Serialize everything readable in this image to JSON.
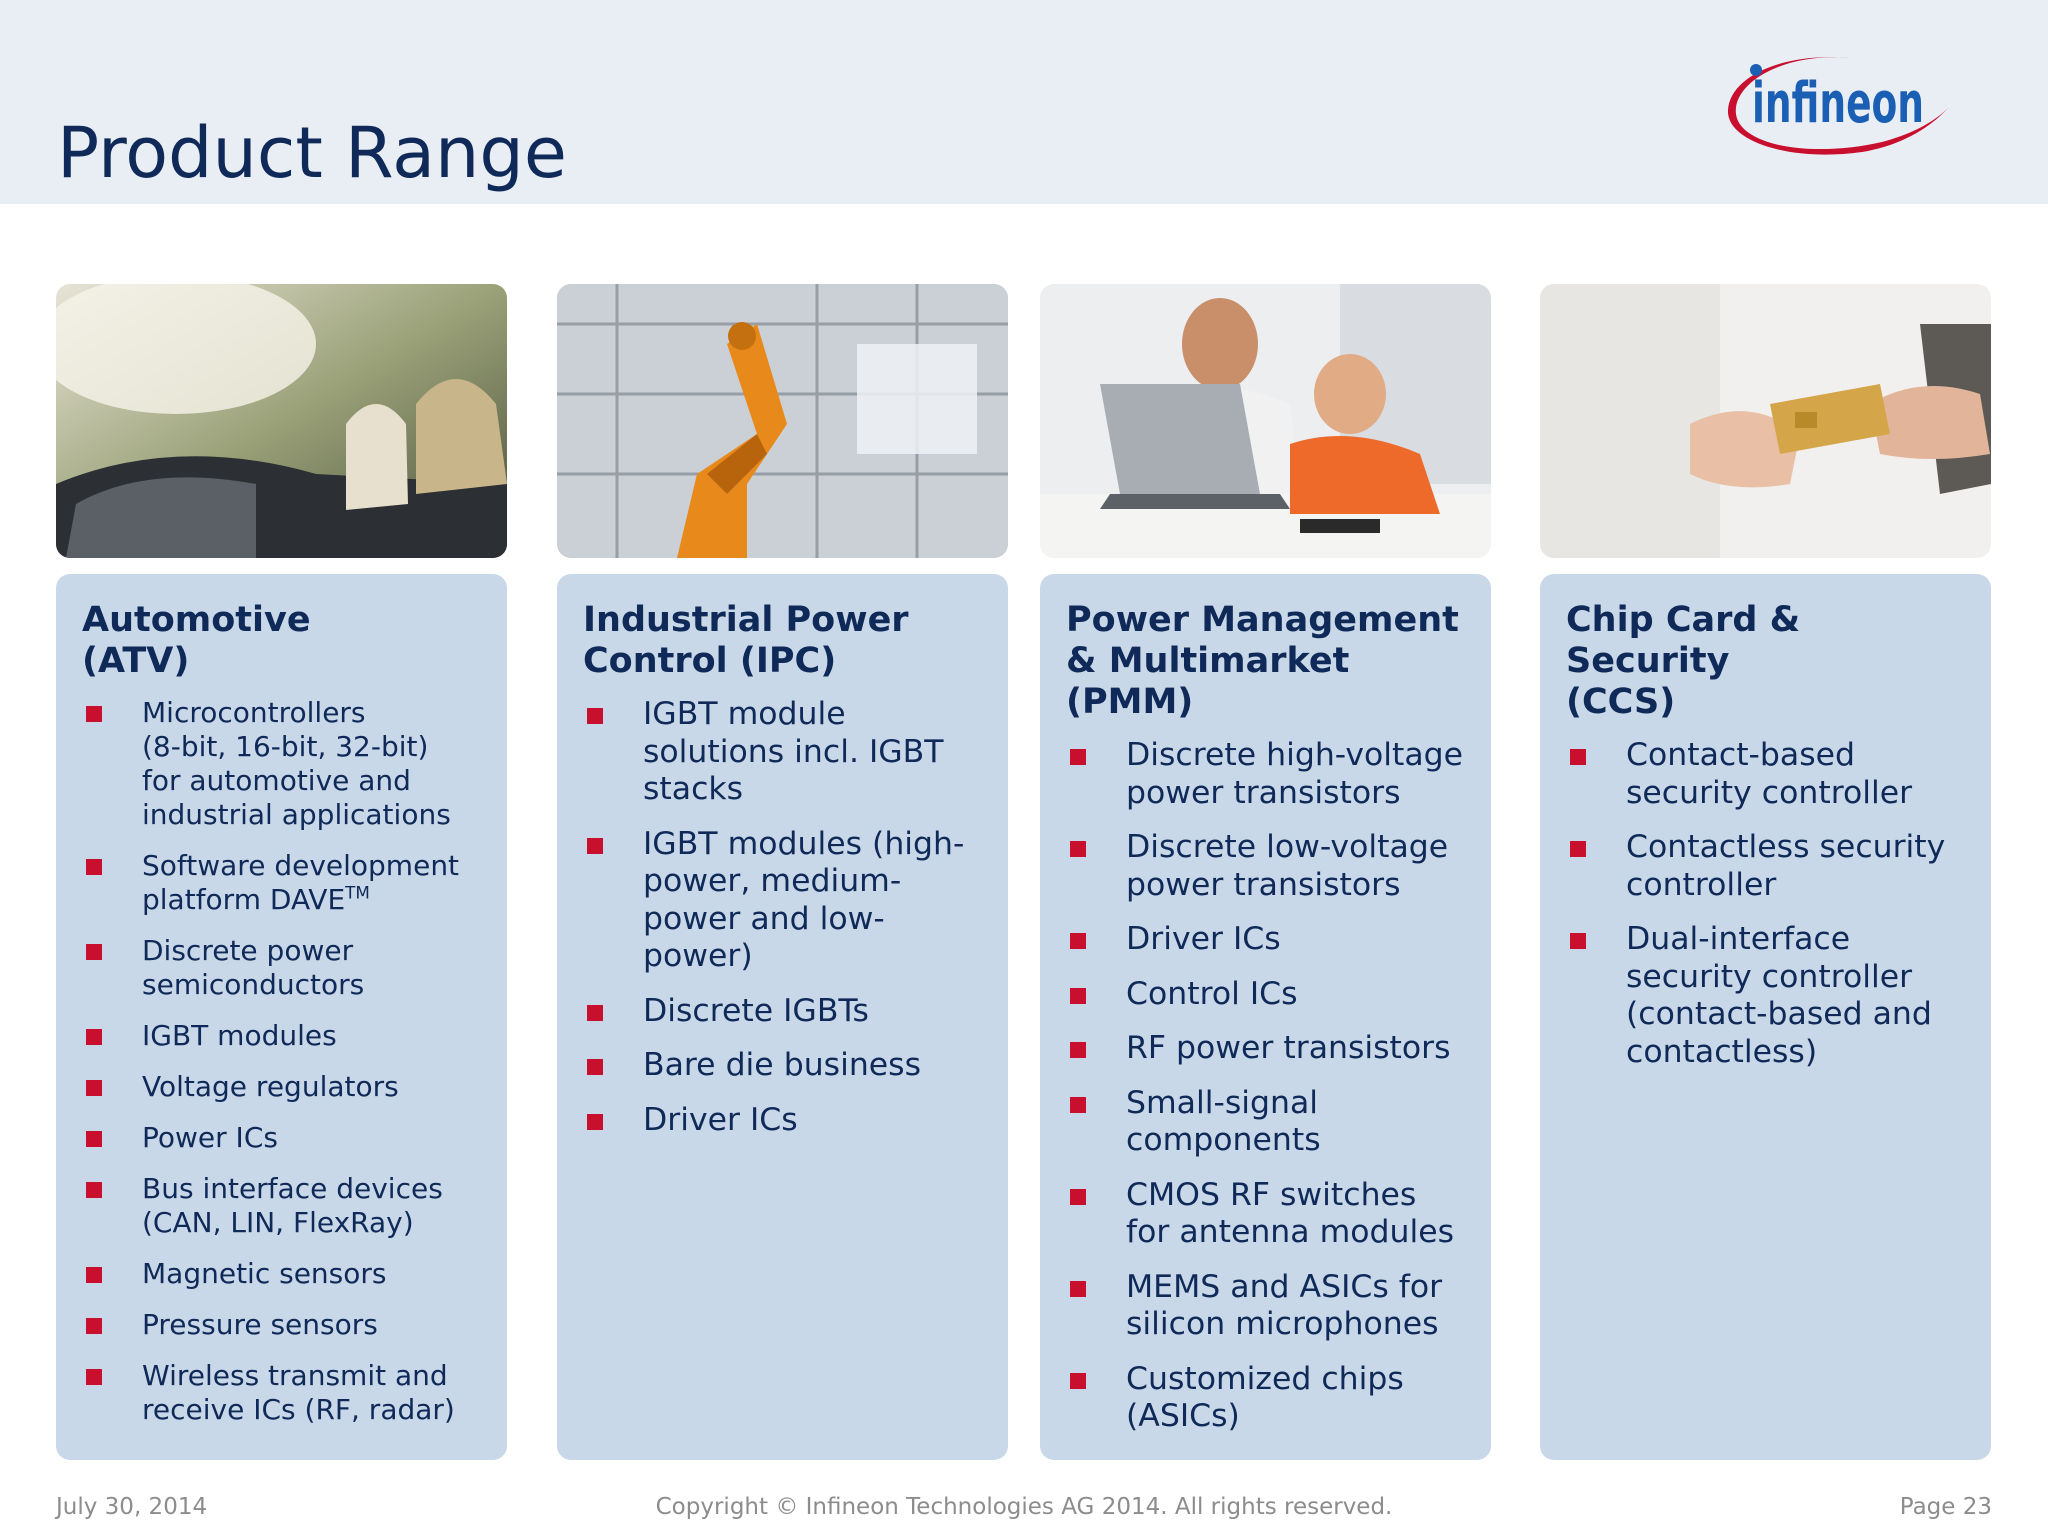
{
  "header": {
    "title": "Product Range",
    "logo_text": "infineon"
  },
  "columns": [
    {
      "title": "Automotive\n(ATV)",
      "photo": "convertible-car-passengers-photo",
      "items": [
        "Microcontrollers\n(8-bit, 16-bit, 32-bit)\nfor automotive and\nindustrial applications",
        "Software development\nplatform DAVE",
        "Discrete power\nsemiconductors",
        "IGBT modules",
        "Voltage regulators",
        "Power ICs",
        "Bus interface devices\n(CAN, LIN, FlexRay)",
        "Magnetic sensors",
        "Pressure sensors",
        "Wireless transmit and\nreceive ICs (RF, radar)"
      ],
      "trademark_suffix": "TM"
    },
    {
      "title": "Industrial Power\nControl (IPC)",
      "photo": "industrial-robot-arm-photo",
      "items": [
        "IGBT module\nsolutions incl. IGBT\nstacks",
        "IGBT modules (high-\npower, medium-\npower and low-\npower)",
        "Discrete IGBTs",
        "Bare die business",
        "Driver ICs"
      ]
    },
    {
      "title": "Power Management\n& Multimarket\n(PMM)",
      "photo": "father-son-laptop-photo",
      "items": [
        "Discrete high-voltage\npower transistors",
        "Discrete low-voltage\npower transistors",
        "Driver ICs",
        "Control ICs",
        "RF power transistors",
        "Small-signal\ncomponents",
        "CMOS RF switches\nfor antenna modules",
        "MEMS and ASICs for\nsilicon microphones",
        "Customized chips\n(ASICs)"
      ]
    },
    {
      "title": "Chip Card & Security\n(CCS)",
      "photo": "hands-passing-chip-card-photo",
      "items": [
        "Contact-based\nsecurity controller",
        "Contactless security\ncontroller",
        "Dual-interface\nsecurity controller\n(contact-based and\ncontactless)"
      ]
    }
  ],
  "footer": {
    "date": "July 30, 2014",
    "copyright": "Copyright © Infineon Technologies AG 2014. All rights reserved.",
    "page": "Page 23"
  },
  "colors": {
    "navy": "#0f2a58",
    "bullet_red": "#c8102e",
    "card_blue": "#c9d8e8",
    "header_bg": "#e9eef5"
  }
}
